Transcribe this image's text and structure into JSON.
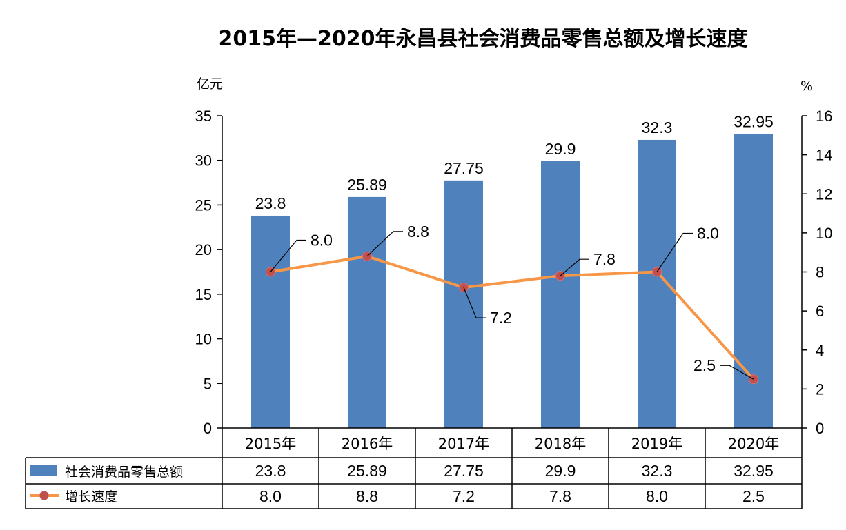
{
  "chart_data": {
    "type": "bar",
    "title": "2015年—2020年永昌县社会消费品零售总额及增长速度",
    "y_unit_left": "亿元",
    "y_unit_right": "%",
    "categories": [
      "2015年",
      "2016年",
      "2017年",
      "2018年",
      "2019年",
      "2020年"
    ],
    "series": [
      {
        "name": "社会消费品零售总额",
        "kind": "bar",
        "axis": "left",
        "color": "#4f81bd",
        "values": [
          23.8,
          25.89,
          27.75,
          29.9,
          32.3,
          32.95
        ],
        "labels": [
          "23.8",
          "25.89",
          "27.75",
          "29.9",
          "32.3",
          "32.95"
        ]
      },
      {
        "name": "增长速度",
        "kind": "line",
        "axis": "right",
        "color": "#f79646",
        "marker_color": "#c0504d",
        "values": [
          8.0,
          8.8,
          7.2,
          7.8,
          8.0,
          2.5
        ],
        "labels": [
          "8.0",
          "8.8",
          "7.2",
          "7.8",
          "8.0",
          "2.5"
        ]
      }
    ],
    "y_left": {
      "ylim": [
        0,
        35
      ],
      "ticks": [
        0,
        5,
        10,
        15,
        20,
        25,
        30,
        35
      ]
    },
    "y_right": {
      "ylim": [
        0,
        16
      ],
      "ticks": [
        0,
        2,
        4,
        6,
        8,
        10,
        12,
        14,
        16
      ]
    },
    "grid": false,
    "legend": "data-table"
  }
}
